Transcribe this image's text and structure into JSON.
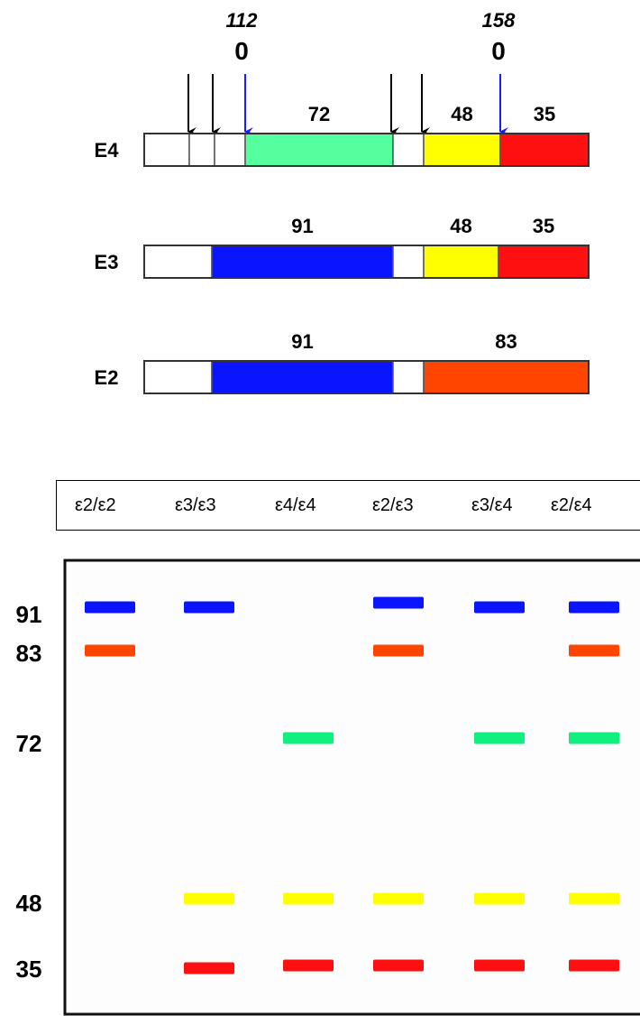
{
  "diagram": {
    "markers": {
      "site_112_label": "112",
      "site_112_glyph": "0",
      "site_158_label": "158",
      "site_158_glyph": "0"
    },
    "alleles": [
      {
        "name": "E4",
        "fragments": [
          {
            "label": "",
            "color": "#ffffff"
          },
          {
            "label": "",
            "color": "#ffffff"
          },
          {
            "label": "",
            "color": "#ffffff"
          },
          {
            "label": "72",
            "color": "#55ff9e"
          },
          {
            "label": "",
            "color": "#ffffff"
          },
          {
            "label": "48",
            "color": "#ffff00"
          },
          {
            "label": "35",
            "color": "#ff1010"
          }
        ]
      },
      {
        "name": "E3",
        "fragments": [
          {
            "label": "",
            "color": "#ffffff"
          },
          {
            "label": "91",
            "color": "#0a14ff"
          },
          {
            "label": "",
            "color": "#ffffff"
          },
          {
            "label": "48",
            "color": "#ffff00"
          },
          {
            "label": "35",
            "color": "#ff1010"
          }
        ]
      },
      {
        "name": "E2",
        "fragments": [
          {
            "label": "",
            "color": "#ffffff"
          },
          {
            "label": "91",
            "color": "#0a14ff"
          },
          {
            "label": "",
            "color": "#ffffff"
          },
          {
            "label": "83",
            "color": "#ff4500"
          }
        ]
      }
    ]
  },
  "gel": {
    "genotypes": [
      "ε2/ε2",
      "ε3/ε3",
      "ε4/ε4",
      "ε2/ε3",
      "ε3/ε4",
      "ε2/ε4"
    ],
    "size_labels": [
      "91",
      "83",
      "72",
      "48",
      "35"
    ],
    "band_colors": {
      "91": "#0a14ff",
      "83": "#ff4500",
      "72": "#10ef80",
      "48": "#ffff00",
      "35": "#ff1010"
    },
    "lanes": [
      {
        "genotype": "ε2/ε2",
        "bands": [
          "91",
          "83"
        ]
      },
      {
        "genotype": "ε3/ε3",
        "bands": [
          "91",
          "48",
          "35"
        ]
      },
      {
        "genotype": "ε4/ε4",
        "bands": [
          "72",
          "48",
          "35"
        ]
      },
      {
        "genotype": "ε2/ε3",
        "bands": [
          "91",
          "83",
          "48",
          "35"
        ]
      },
      {
        "genotype": "ε3/ε4",
        "bands": [
          "91",
          "72",
          "48",
          "35"
        ]
      },
      {
        "genotype": "ε2/ε4",
        "bands": [
          "91",
          "83",
          "72",
          "48",
          "35"
        ]
      }
    ]
  }
}
